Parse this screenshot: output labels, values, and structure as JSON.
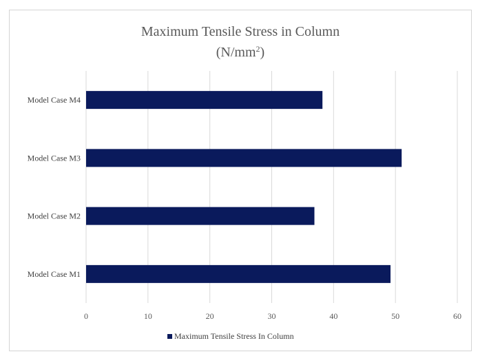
{
  "chart_data": {
    "type": "bar",
    "orientation": "horizontal",
    "title_main": "Maximum Tensile Stress in Column",
    "title_unit": "(N/mm",
    "title_unit_sup": "2",
    "title_unit_close": ")",
    "categories": [
      "Model Case M1",
      "Model Case M2",
      "Model Case M3",
      "Model Case M4"
    ],
    "series": [
      {
        "name": "Maximum Tensile Stress In Column",
        "values": [
          49.2,
          36.9,
          51.0,
          38.2
        ],
        "color": "#0a1a5c"
      }
    ],
    "xlim": [
      0,
      60
    ],
    "xticks": [
      "0",
      "10",
      "20",
      "30",
      "40",
      "50",
      "60"
    ],
    "xlabel": "",
    "ylabel": "",
    "grid": "vertical",
    "legend_position": "bottom"
  }
}
